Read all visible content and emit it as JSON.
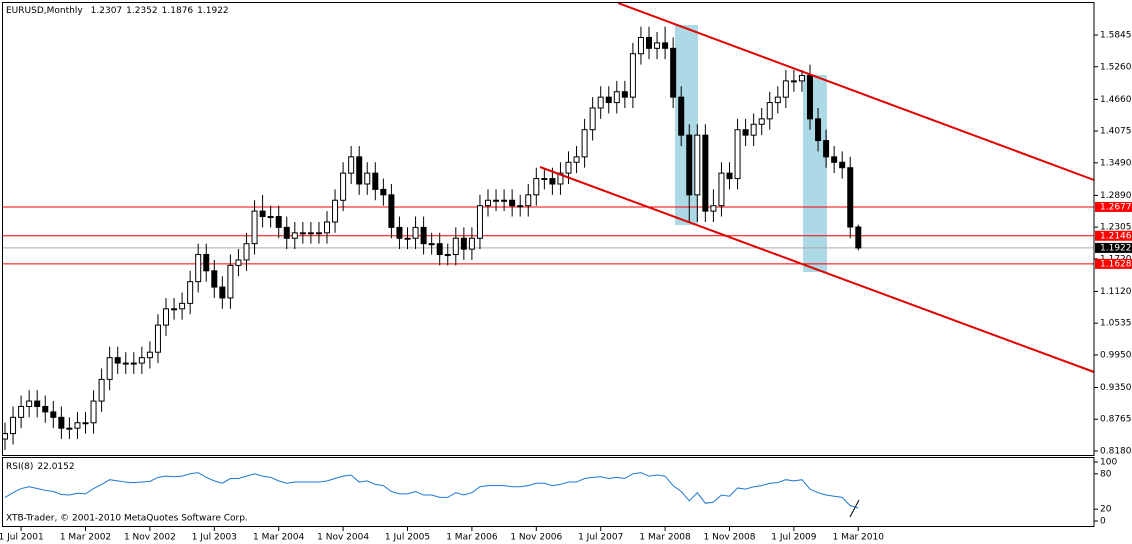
{
  "chart_data": {
    "type": "candlestick",
    "title": "EURUSD,Monthly",
    "categories": [
      null,
      null,
      "1 Jul 2001",
      null,
      null,
      null,
      null,
      null,
      null,
      null,
      "1 Mar 2002",
      null,
      null,
      null,
      null,
      null,
      null,
      null,
      "1 Nov 2002",
      null,
      null,
      null,
      null,
      null,
      null,
      null,
      "1 Jul 2003",
      null,
      null,
      null,
      null,
      null,
      null,
      null,
      "1 Mar 2004",
      null,
      null,
      null,
      null,
      null,
      null,
      null,
      "1 Nov 2004",
      null,
      null,
      null,
      null,
      null,
      null,
      null,
      "1 Jul 2005",
      null,
      null,
      null,
      null,
      null,
      null,
      null,
      "1 Mar 2006",
      null,
      null,
      null,
      null,
      null,
      null,
      null,
      "1 Nov 2006",
      null,
      null,
      null,
      null,
      null,
      null,
      null,
      "1 Jul 2007",
      null,
      null,
      null,
      null,
      null,
      null,
      null,
      "1 Mar 2008",
      null,
      null,
      null,
      null,
      null,
      null,
      null,
      "1 Nov 2008",
      null,
      null,
      null,
      null,
      null,
      null,
      null,
      "1 Jul 2009",
      null,
      null,
      null,
      null,
      null,
      null,
      null,
      "1 Mar 2010"
    ],
    "open": [
      0.84,
      0.85,
      0.88,
      0.9,
      0.91,
      0.9,
      0.89,
      0.88,
      0.86,
      0.86,
      0.87,
      0.87,
      0.91,
      0.95,
      0.99,
      0.98,
      0.98,
      0.98,
      0.99,
      1.0,
      1.05,
      1.08,
      1.08,
      1.09,
      1.13,
      1.18,
      1.15,
      1.12,
      1.1,
      1.16,
      1.17,
      1.2,
      1.26,
      1.25,
      1.25,
      1.23,
      1.21,
      1.22,
      1.22,
      1.22,
      1.22,
      1.24,
      1.28,
      1.33,
      1.36,
      1.31,
      1.33,
      1.3,
      1.29,
      1.23,
      1.21,
      1.21,
      1.23,
      1.2,
      1.2,
      1.18,
      1.18,
      1.21,
      1.19,
      1.21,
      1.27,
      1.28,
      1.28,
      1.28,
      1.27,
      1.27,
      1.29,
      1.32,
      1.32,
      1.31,
      1.33,
      1.35,
      1.36,
      1.41,
      1.45,
      1.47,
      1.46,
      1.48,
      1.47,
      1.55,
      1.58,
      1.56,
      1.57,
      1.56,
      1.47,
      1.4,
      1.29,
      1.4,
      1.26,
      1.27,
      1.33,
      1.32,
      1.41,
      1.4,
      1.42,
      1.43,
      1.46,
      1.47,
      1.5,
      1.5,
      1.51,
      1.43,
      1.39,
      1.36,
      1.35,
      1.34,
      1.2307
    ],
    "high": [
      0.87,
      0.9,
      0.92,
      0.93,
      0.93,
      0.92,
      0.91,
      0.9,
      0.88,
      0.89,
      0.89,
      0.93,
      0.97,
      1.01,
      1.01,
      1.0,
      1.0,
      1.01,
      1.02,
      1.07,
      1.1,
      1.1,
      1.11,
      1.15,
      1.2,
      1.2,
      1.17,
      1.14,
      1.18,
      1.19,
      1.22,
      1.28,
      1.29,
      1.27,
      1.27,
      1.25,
      1.24,
      1.24,
      1.24,
      1.24,
      1.26,
      1.3,
      1.35,
      1.38,
      1.38,
      1.35,
      1.35,
      1.32,
      1.31,
      1.25,
      1.23,
      1.25,
      1.25,
      1.22,
      1.22,
      1.2,
      1.23,
      1.23,
      1.23,
      1.29,
      1.3,
      1.3,
      1.3,
      1.3,
      1.29,
      1.31,
      1.34,
      1.34,
      1.34,
      1.35,
      1.37,
      1.38,
      1.43,
      1.47,
      1.49,
      1.49,
      1.5,
      1.5,
      1.57,
      1.6,
      1.6,
      1.59,
      1.6,
      1.58,
      1.49,
      1.42,
      1.42,
      1.42,
      1.3,
      1.35,
      1.35,
      1.43,
      1.43,
      1.44,
      1.45,
      1.48,
      1.49,
      1.52,
      1.52,
      1.52,
      1.53,
      1.45,
      1.41,
      1.38,
      1.37,
      1.36,
      1.2352
    ],
    "low": [
      0.82,
      0.83,
      0.86,
      0.88,
      0.88,
      0.87,
      0.86,
      0.84,
      0.84,
      0.84,
      0.85,
      0.85,
      0.89,
      0.93,
      0.96,
      0.96,
      0.96,
      0.96,
      0.97,
      0.98,
      1.03,
      1.06,
      1.06,
      1.07,
      1.11,
      1.13,
      1.1,
      1.08,
      1.08,
      1.14,
      1.15,
      1.18,
      1.23,
      1.23,
      1.21,
      1.19,
      1.19,
      1.2,
      1.2,
      1.2,
      1.2,
      1.22,
      1.26,
      1.31,
      1.29,
      1.29,
      1.28,
      1.27,
      1.21,
      1.19,
      1.19,
      1.19,
      1.18,
      1.18,
      1.16,
      1.16,
      1.16,
      1.17,
      1.17,
      1.19,
      1.25,
      1.26,
      1.26,
      1.25,
      1.25,
      1.25,
      1.27,
      1.3,
      1.29,
      1.29,
      1.31,
      1.33,
      1.34,
      1.39,
      1.43,
      1.44,
      1.44,
      1.45,
      1.45,
      1.53,
      1.54,
      1.54,
      1.54,
      1.45,
      1.38,
      1.24,
      1.24,
      1.24,
      1.24,
      1.25,
      1.3,
      1.3,
      1.38,
      1.38,
      1.4,
      1.41,
      1.44,
      1.45,
      1.48,
      1.48,
      1.41,
      1.37,
      1.34,
      1.33,
      1.32,
      1.21,
      1.1876
    ],
    "close": [
      0.85,
      0.88,
      0.9,
      0.91,
      0.9,
      0.89,
      0.88,
      0.86,
      0.86,
      0.87,
      0.87,
      0.91,
      0.95,
      0.99,
      0.98,
      0.98,
      0.98,
      0.99,
      1.0,
      1.05,
      1.08,
      1.08,
      1.09,
      1.13,
      1.18,
      1.15,
      1.12,
      1.1,
      1.16,
      1.17,
      1.2,
      1.26,
      1.25,
      1.25,
      1.23,
      1.21,
      1.22,
      1.22,
      1.22,
      1.22,
      1.24,
      1.28,
      1.33,
      1.36,
      1.31,
      1.33,
      1.3,
      1.29,
      1.23,
      1.21,
      1.21,
      1.23,
      1.2,
      1.2,
      1.18,
      1.18,
      1.21,
      1.19,
      1.21,
      1.27,
      1.28,
      1.28,
      1.28,
      1.27,
      1.27,
      1.29,
      1.32,
      1.32,
      1.31,
      1.33,
      1.35,
      1.36,
      1.41,
      1.45,
      1.47,
      1.46,
      1.48,
      1.47,
      1.55,
      1.58,
      1.56,
      1.57,
      1.56,
      1.47,
      1.4,
      1.29,
      1.4,
      1.26,
      1.27,
      1.33,
      1.32,
      1.41,
      1.4,
      1.42,
      1.43,
      1.46,
      1.47,
      1.5,
      1.5,
      1.51,
      1.43,
      1.39,
      1.36,
      1.35,
      1.34,
      1.2307,
      1.1922
    ],
    "ylim": [
      0.8106,
      1.6435
    ],
    "yticks": [
      1.5845,
      {
        "value": 1.526,
        "label": "1.5260"
      },
      {
        "value": 1.466,
        "label": "1.4660"
      },
      1.4075,
      {
        "value": 1.349,
        "label": "1.3490"
      },
      {
        "value": 1.289,
        "label": "1.2890"
      },
      1.2305,
      {
        "value": 1.172,
        "label": "1.1720"
      },
      {
        "value": 1.112,
        "label": "1.1120"
      },
      1.0535,
      {
        "value": 0.995,
        "label": "0.9950"
      },
      {
        "value": 0.935,
        "label": "0.9350"
      },
      0.8765,
      {
        "value": 0.818,
        "label": "0.8180"
      }
    ],
    "levels": [
      {
        "value": 1.2677,
        "color": "#ff0000"
      },
      {
        "value": 1.2146,
        "color": "#ff0000"
      },
      {
        "value": 1.1922,
        "color": "#000000"
      },
      {
        "value": 1.1628,
        "color": "#ff0000"
      }
    ],
    "rsi": {
      "name": "RSI(8)",
      "color": "#1e78d2",
      "ylim": [
        0,
        100
      ],
      "yticks": [
        100,
        80,
        20,
        0
      ],
      "values": [
        40,
        48,
        55,
        58,
        55,
        52,
        50,
        45,
        44,
        47,
        46,
        55,
        62,
        70,
        68,
        66,
        65,
        66,
        67,
        74,
        76,
        75,
        76,
        80,
        82,
        74,
        68,
        64,
        72,
        72,
        76,
        80,
        76,
        74,
        68,
        64,
        66,
        66,
        66,
        66,
        68,
        72,
        76,
        78,
        66,
        68,
        62,
        60,
        50,
        46,
        46,
        50,
        44,
        44,
        40,
        40,
        48,
        44,
        48,
        58,
        60,
        60,
        60,
        58,
        58,
        60,
        64,
        64,
        60,
        62,
        66,
        66,
        72,
        74,
        75,
        72,
        74,
        72,
        80,
        82,
        76,
        78,
        76,
        60,
        50,
        34,
        48,
        30,
        32,
        44,
        42,
        56,
        54,
        58,
        60,
        64,
        65,
        70,
        68,
        70,
        54,
        48,
        44,
        42,
        40,
        26,
        22.0152
      ]
    },
    "footer": "XTB-Trader, © 2001-2010 MetaQuotes Software Corp."
  }
}
